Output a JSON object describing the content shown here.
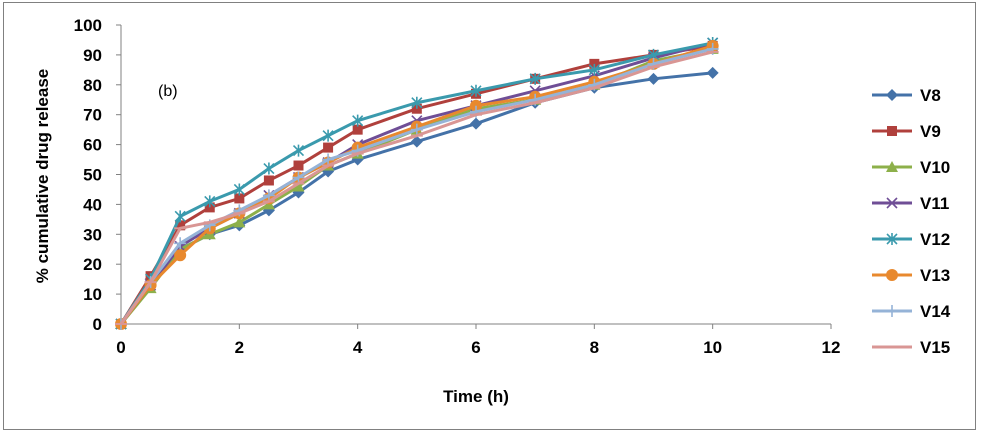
{
  "chart_data": {
    "type": "line",
    "title": "",
    "annotation": "(b)",
    "xlabel": "Time (h)",
    "ylabel": "% cumulative drug release",
    "xlim": [
      0,
      12
    ],
    "ylim": [
      0,
      100
    ],
    "xticks": [
      0,
      2,
      4,
      6,
      8,
      10,
      12
    ],
    "yticks": [
      0,
      10,
      20,
      30,
      40,
      50,
      60,
      70,
      80,
      90,
      100
    ],
    "grid": false,
    "legend_position": "right",
    "x": [
      0,
      0.5,
      1,
      1.5,
      2,
      2.5,
      3,
      3.5,
      4,
      5,
      6,
      7,
      8,
      9,
      10
    ],
    "series": [
      {
        "name": "V8",
        "color": "#4472a8",
        "marker": "diamond",
        "values": [
          0,
          15,
          25,
          30,
          33,
          38,
          44,
          51,
          55,
          61,
          67,
          74,
          79,
          82,
          84
        ]
      },
      {
        "name": "V9",
        "color": "#b0403c",
        "marker": "square",
        "values": [
          0,
          16,
          33,
          39,
          42,
          48,
          53,
          59,
          65,
          72,
          77,
          82,
          87,
          90,
          93
        ]
      },
      {
        "name": "V10",
        "color": "#8db04a",
        "marker": "triangle",
        "values": [
          0,
          12,
          25,
          30,
          34,
          40,
          46,
          53,
          57,
          65,
          72,
          75,
          80,
          88,
          92
        ]
      },
      {
        "name": "V11",
        "color": "#6f4e96",
        "marker": "x",
        "values": [
          0,
          13,
          26,
          32,
          37,
          43,
          49,
          54,
          60,
          68,
          73,
          78,
          83,
          89,
          94
        ]
      },
      {
        "name": "V12",
        "color": "#3a9aad",
        "marker": "star",
        "values": [
          0,
          15,
          36,
          41,
          45,
          52,
          58,
          63,
          68,
          74,
          78,
          82,
          85,
          90,
          94
        ]
      },
      {
        "name": "V13",
        "color": "#e8892e",
        "marker": "circle",
        "values": [
          0,
          13,
          23,
          32,
          37,
          42,
          49,
          54,
          59,
          66,
          73,
          76,
          81,
          87,
          93
        ]
      },
      {
        "name": "V14",
        "color": "#95b3d7",
        "marker": "plus",
        "values": [
          0,
          14,
          27,
          33,
          38,
          43,
          49,
          55,
          58,
          65,
          71,
          75,
          80,
          87,
          92
        ]
      },
      {
        "name": "V15",
        "color": "#d99694",
        "marker": "dash",
        "values": [
          0,
          14,
          32,
          34,
          37,
          41,
          47,
          53,
          57,
          63,
          70,
          74,
          79,
          86,
          91
        ]
      }
    ]
  }
}
